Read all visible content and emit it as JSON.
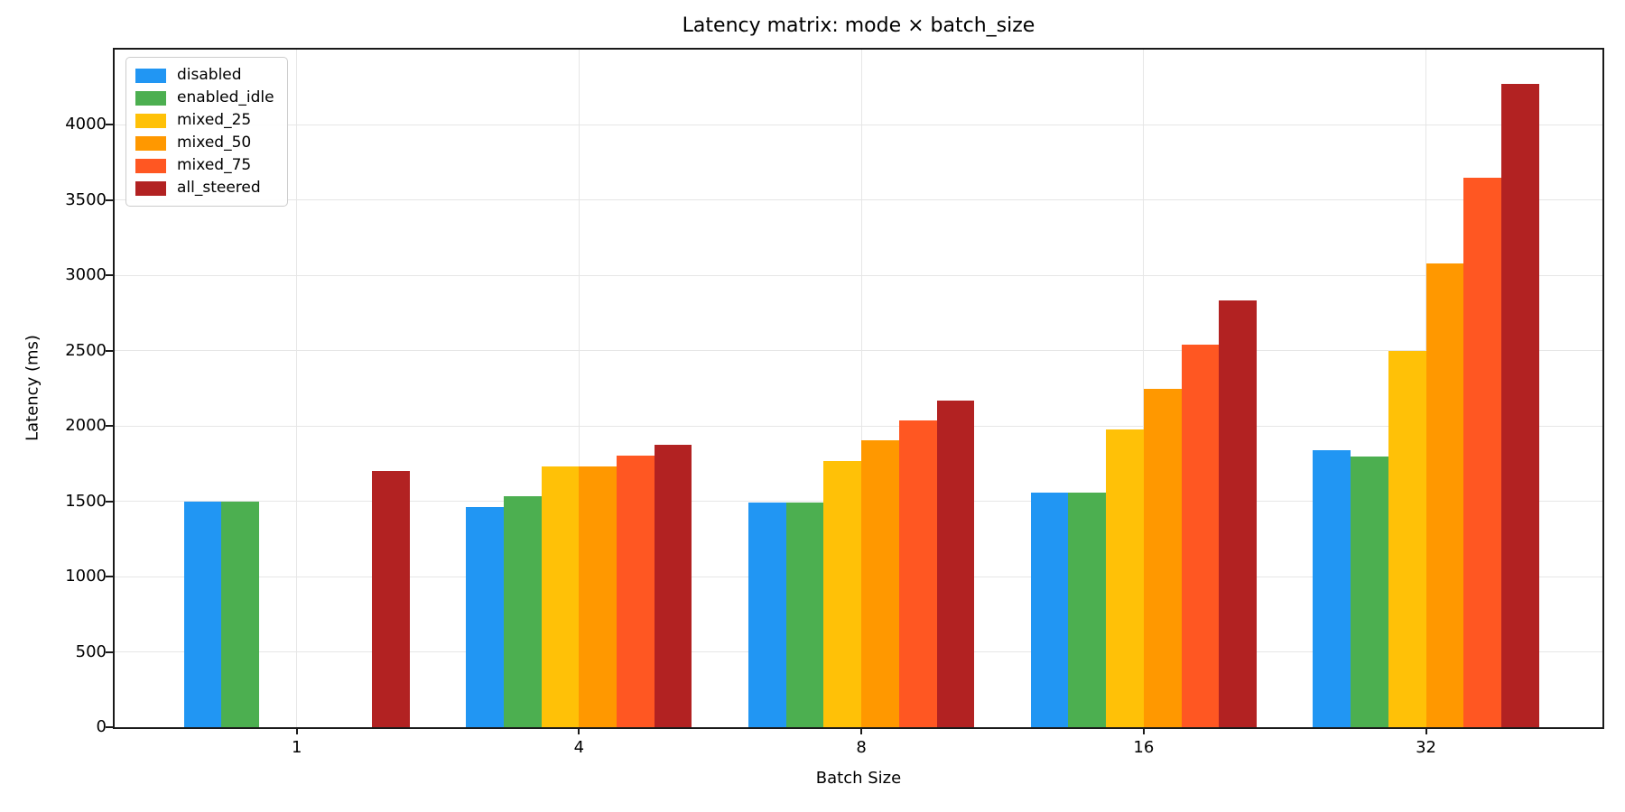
{
  "chart_data": {
    "type": "bar",
    "title": "Latency matrix: mode × batch_size",
    "xlabel": "Batch Size",
    "ylabel": "Latency (ms)",
    "categories": [
      "1",
      "4",
      "8",
      "16",
      "32"
    ],
    "series": [
      {
        "name": "disabled",
        "color": "#2196F3",
        "values": [
          1500,
          1460,
          1490,
          1560,
          1840
        ]
      },
      {
        "name": "enabled_idle",
        "color": "#4CAF50",
        "values": [
          1500,
          1535,
          1490,
          1560,
          1800
        ]
      },
      {
        "name": "mixed_25",
        "color": "#FFC107",
        "values": [
          0,
          1730,
          1770,
          1975,
          2500
        ]
      },
      {
        "name": "mixed_50",
        "color": "#FF9800",
        "values": [
          0,
          1730,
          1905,
          2245,
          3080
        ]
      },
      {
        "name": "mixed_75",
        "color": "#FF5722",
        "values": [
          0,
          1805,
          2035,
          2540,
          3650
        ]
      },
      {
        "name": "all_steered",
        "color": "#B22222",
        "values": [
          1700,
          1875,
          2170,
          2835,
          4270
        ]
      }
    ],
    "ylim": [
      0,
      4500
    ],
    "yticks": [
      0,
      500,
      1000,
      1500,
      2000,
      2500,
      3000,
      3500,
      4000
    ],
    "grid": true,
    "legend_position": "upper-left",
    "colors": {
      "grid": "#e6e6e6",
      "spine": "#1a1a1a",
      "background": "#ffffff"
    }
  }
}
